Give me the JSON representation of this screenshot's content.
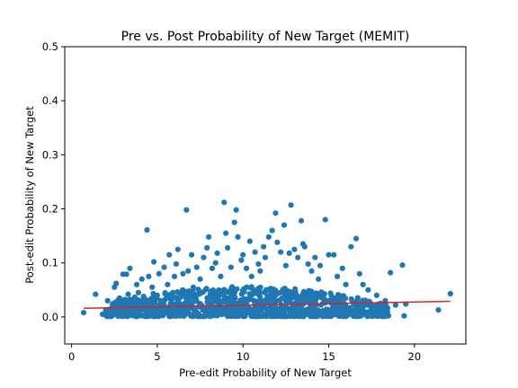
{
  "chart_data": {
    "type": "scatter",
    "title": "Pre vs. Post Probability of New Target (MEMIT)",
    "xlabel": "Pre-edit Probability of New Target",
    "ylabel": "Post-edit Probability of New Target",
    "xlim": [
      -0.4,
      23.0
    ],
    "ylim": [
      -0.05,
      0.5
    ],
    "xticks": [
      0,
      5,
      10,
      15,
      20
    ],
    "xtick_labels": [
      "0",
      "5",
      "10",
      "15",
      "20"
    ],
    "yticks": [
      0.0,
      0.1,
      0.2,
      0.3,
      0.4,
      0.5
    ],
    "ytick_labels": [
      "0.0",
      "0.1",
      "0.2",
      "0.3",
      "0.4",
      "0.5"
    ],
    "grid": false,
    "marker_color": "#1f77b4",
    "fit_line_color": "#d62728",
    "fit_line": {
      "x": [
        0.7,
        22.1
      ],
      "y": [
        0.016,
        0.029
      ]
    },
    "series": [
      {
        "points": [
          [
            0.7,
            0.008
          ],
          [
            1.4,
            0.042
          ],
          [
            1.8,
            0.005
          ],
          [
            2.0,
            0.013
          ],
          [
            2.1,
            0.03
          ],
          [
            2.3,
            0.001
          ],
          [
            2.4,
            0.02
          ],
          [
            2.5,
            0.055
          ],
          [
            2.6,
            0.062
          ],
          [
            2.7,
            0.012
          ],
          [
            2.8,
            0.035
          ],
          [
            3.0,
            0.079
          ],
          [
            3.1,
            0.004
          ],
          [
            3.2,
            0.079
          ],
          [
            3.3,
            0.042
          ],
          [
            3.4,
            0.09
          ],
          [
            3.5,
            0.015
          ],
          [
            3.6,
            0.028
          ],
          [
            3.8,
            0.06
          ],
          [
            3.9,
            0.045
          ],
          [
            4.0,
            0.02
          ],
          [
            4.1,
            0.07
          ],
          [
            4.2,
            0.038
          ],
          [
            4.4,
            0.161
          ],
          [
            4.5,
            0.075
          ],
          [
            4.7,
            0.055
          ],
          [
            4.8,
            0.102
          ],
          [
            5.0,
            0.04
          ],
          [
            5.1,
            0.08
          ],
          [
            5.2,
            0.03
          ],
          [
            5.4,
            0.092
          ],
          [
            5.6,
            0.06
          ],
          [
            5.7,
            0.115
          ],
          [
            5.9,
            0.045
          ],
          [
            6.0,
            0.075
          ],
          [
            6.1,
            0.098
          ],
          [
            6.2,
            0.125
          ],
          [
            6.3,
            0.035
          ],
          [
            6.5,
            0.08
          ],
          [
            6.7,
            0.198
          ],
          [
            6.8,
            0.085
          ],
          [
            7.0,
            0.115
          ],
          [
            7.1,
            0.055
          ],
          [
            7.3,
            0.092
          ],
          [
            7.5,
            0.07
          ],
          [
            7.7,
            0.11
          ],
          [
            7.9,
            0.128
          ],
          [
            8.0,
            0.148
          ],
          [
            8.2,
            0.09
          ],
          [
            8.4,
            0.1
          ],
          [
            8.5,
            0.118
          ],
          [
            8.7,
            0.075
          ],
          [
            8.9,
            0.212
          ],
          [
            9.0,
            0.155
          ],
          [
            9.1,
            0.128
          ],
          [
            9.3,
            0.092
          ],
          [
            9.5,
            0.175
          ],
          [
            9.6,
            0.198
          ],
          [
            9.7,
            0.148
          ],
          [
            9.9,
            0.105
          ],
          [
            10.0,
            0.115
          ],
          [
            10.2,
            0.09
          ],
          [
            10.4,
            0.14
          ],
          [
            10.5,
            0.075
          ],
          [
            10.7,
            0.12
          ],
          [
            10.9,
            0.098
          ],
          [
            11.0,
            0.085
          ],
          [
            11.2,
            0.13
          ],
          [
            11.3,
            0.11
          ],
          [
            11.5,
            0.148
          ],
          [
            11.7,
            0.16
          ],
          [
            11.9,
            0.192
          ],
          [
            12.0,
            0.138
          ],
          [
            12.2,
            0.12
          ],
          [
            12.4,
            0.17
          ],
          [
            12.5,
            0.095
          ],
          [
            12.7,
            0.118
          ],
          [
            12.8,
            0.207
          ],
          [
            13.0,
            0.125
          ],
          [
            13.2,
            0.11
          ],
          [
            13.4,
            0.178
          ],
          [
            13.5,
            0.135
          ],
          [
            13.6,
            0.13
          ],
          [
            13.8,
            0.098
          ],
          [
            14.0,
            0.085
          ],
          [
            14.2,
            0.11
          ],
          [
            14.4,
            0.07
          ],
          [
            14.5,
            0.095
          ],
          [
            14.8,
            0.18
          ],
          [
            15.0,
            0.115
          ],
          [
            15.3,
            0.115
          ],
          [
            15.5,
            0.075
          ],
          [
            15.8,
            0.09
          ],
          [
            16.0,
            0.06
          ],
          [
            16.3,
            0.13
          ],
          [
            16.6,
            0.145
          ],
          [
            16.8,
            0.08
          ],
          [
            17.0,
            0.06
          ],
          [
            17.3,
            0.05
          ],
          [
            17.8,
            0.04
          ],
          [
            18.3,
            0.03
          ],
          [
            18.6,
            0.082
          ],
          [
            18.9,
            0.022
          ],
          [
            19.3,
            0.096
          ],
          [
            19.4,
            0.002
          ],
          [
            19.5,
            0.024
          ],
          [
            21.4,
            0.013
          ],
          [
            22.1,
            0.043
          ]
        ]
      }
    ]
  }
}
